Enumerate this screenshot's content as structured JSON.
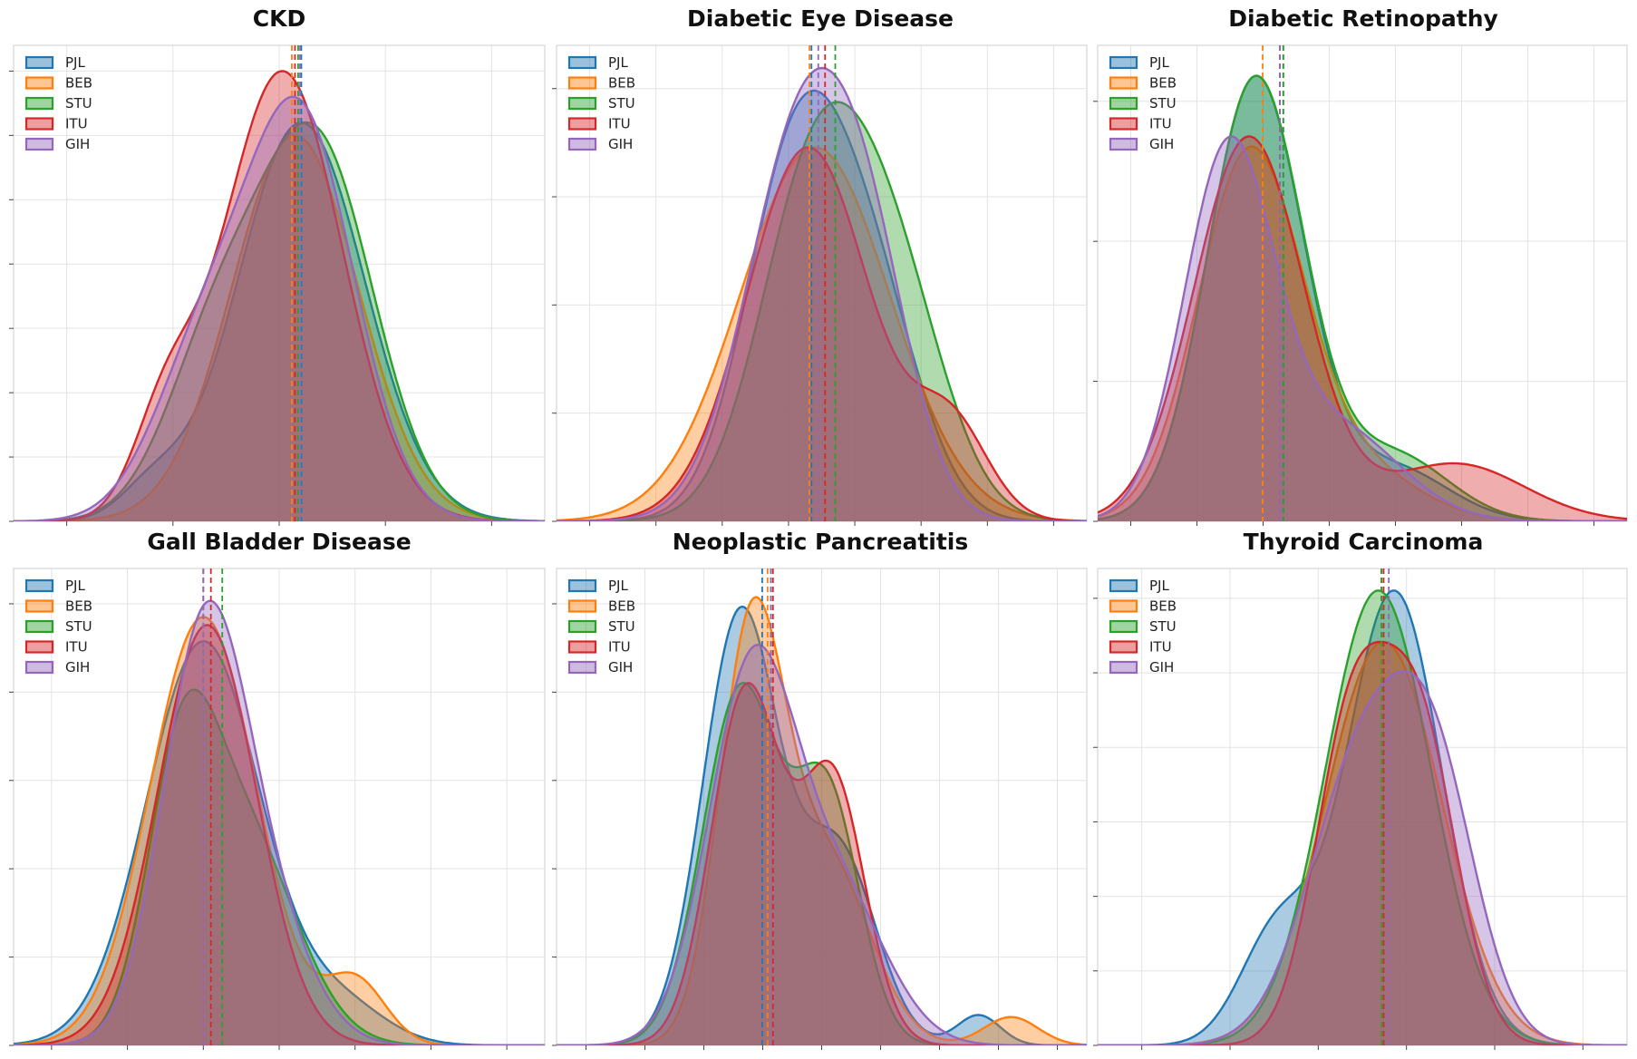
{
  "colors": {
    "PJL": "#1f77b4",
    "BEB": "#ff7f0e",
    "STU": "#2ca02c",
    "ITU": "#d62728",
    "GIH": "#9467bd"
  },
  "legend_labels": [
    "PJL",
    "BEB",
    "STU",
    "ITU",
    "GIH"
  ],
  "chart_data": [
    {
      "type": "area",
      "title": "CKD",
      "xlabel": "",
      "ylabel": "",
      "xlim": [
        -4.2,
        4.2
      ],
      "ylim": [
        0,
        0.37
      ],
      "grid": true,
      "legend": "top-left",
      "x_tick_count": 5,
      "y_tick_count": 8,
      "series": [
        {
          "name": "PJL",
          "mean": 0.35,
          "peak": 0.31,
          "components": [
            [
              1.0,
              0.35,
              1.0
            ],
            [
              0.08,
              -2.0,
              0.5
            ]
          ]
        },
        {
          "name": "BEB",
          "mean": 0.2,
          "peak": 0.3,
          "components": [
            [
              1.0,
              0.25,
              1.0
            ]
          ]
        },
        {
          "name": "STU",
          "mean": 0.3,
          "peak": 0.31,
          "components": [
            [
              1.0,
              0.6,
              0.9
            ],
            [
              0.45,
              -1.0,
              0.8
            ]
          ]
        },
        {
          "name": "ITU",
          "mean": 0.25,
          "peak": 0.35,
          "components": [
            [
              1.0,
              0.05,
              0.95
            ],
            [
              0.2,
              -1.8,
              0.5
            ]
          ]
        },
        {
          "name": "GIH",
          "mean": 0.33,
          "peak": 0.33,
          "components": [
            [
              1.0,
              0.35,
              0.85
            ],
            [
              0.4,
              -1.2,
              0.8
            ]
          ]
        }
      ]
    },
    {
      "type": "area",
      "title": "Diabetic Eye Disease",
      "xlabel": "",
      "ylabel": "",
      "xlim": [
        -3.8,
        4.0
      ],
      "ylim": [
        0,
        0.42
      ],
      "grid": true,
      "legend": "top-left",
      "x_tick_count": 8,
      "y_tick_count": 5,
      "series": [
        {
          "name": "PJL",
          "mean": -0.05,
          "peak": 0.38,
          "components": [
            [
              1.0,
              -0.25,
              0.75
            ],
            [
              0.5,
              0.9,
              0.7
            ]
          ]
        },
        {
          "name": "BEB",
          "mean": -0.08,
          "peak": 0.33,
          "components": [
            [
              1.0,
              0.0,
              1.1
            ]
          ]
        },
        {
          "name": "STU",
          "mean": 0.3,
          "peak": 0.37,
          "components": [
            [
              1.0,
              0.0,
              0.8
            ],
            [
              0.6,
              1.2,
              0.75
            ]
          ]
        },
        {
          "name": "ITU",
          "mean": 0.15,
          "peak": 0.33,
          "components": [
            [
              1.0,
              -0.1,
              0.9
            ],
            [
              0.25,
              2.0,
              0.55
            ]
          ]
        },
        {
          "name": "GIH",
          "mean": 0.05,
          "peak": 0.4,
          "components": [
            [
              1.0,
              -0.1,
              0.85
            ],
            [
              0.3,
              0.9,
              0.6
            ]
          ]
        }
      ]
    },
    {
      "type": "area",
      "title": "Diabetic Retinopathy",
      "xlabel": "",
      "ylabel": "",
      "xlim": [
        -2.7,
        5.0
      ],
      "ylim": [
        0,
        0.47
      ],
      "grid": true,
      "legend": "top-left",
      "x_tick_count": 8,
      "y_tick_count": 4,
      "series": [
        {
          "name": "PJL",
          "mean": 0.0,
          "peak": 0.44,
          "components": [
            [
              1.0,
              -0.4,
              0.7
            ],
            [
              0.12,
              1.6,
              0.8
            ]
          ]
        },
        {
          "name": "BEB",
          "mean": -0.3,
          "peak": 0.37,
          "components": [
            [
              1.0,
              -0.5,
              0.75
            ],
            [
              0.15,
              1.0,
              0.9
            ]
          ]
        },
        {
          "name": "STU",
          "mean": 0.0,
          "peak": 0.44,
          "components": [
            [
              1.0,
              -0.4,
              0.7
            ],
            [
              0.15,
              1.6,
              0.8
            ]
          ]
        },
        {
          "name": "ITU",
          "mean": -0.05,
          "peak": 0.38,
          "components": [
            [
              1.0,
              -0.5,
              0.8
            ],
            [
              0.15,
              2.5,
              1.0
            ]
          ]
        },
        {
          "name": "GIH",
          "mean": -0.05,
          "peak": 0.38,
          "components": [
            [
              1.0,
              -0.8,
              0.65
            ],
            [
              0.25,
              0.8,
              0.9
            ]
          ]
        }
      ]
    },
    {
      "type": "area",
      "title": "Gall Bladder Disease",
      "xlabel": "",
      "ylabel": "",
      "xlim": [
        -2.5,
        4.5
      ],
      "ylim": [
        0,
        0.59
      ],
      "grid": true,
      "legend": "top-left",
      "x_tick_count": 7,
      "y_tick_count": 6,
      "series": [
        {
          "name": "PJL",
          "mean": 0.0,
          "peak": 0.5,
          "components": [
            [
              1.0,
              0.0,
              0.75
            ],
            [
              0.1,
              1.8,
              0.6
            ]
          ]
        },
        {
          "name": "BEB",
          "mean": 0.0,
          "peak": 0.53,
          "components": [
            [
              1.0,
              0.0,
              0.7
            ],
            [
              0.15,
              2.0,
              0.4
            ]
          ]
        },
        {
          "name": "STU",
          "mean": 0.25,
          "peak": 0.44,
          "components": [
            [
              1.0,
              -0.3,
              0.45
            ],
            [
              0.95,
              0.5,
              0.7
            ]
          ]
        },
        {
          "name": "ITU",
          "mean": 0.1,
          "peak": 0.52,
          "components": [
            [
              1.0,
              0.05,
              0.65
            ]
          ]
        },
        {
          "name": "GIH",
          "mean": 0.0,
          "peak": 0.55,
          "components": [
            [
              1.0,
              0.0,
              0.55
            ],
            [
              0.3,
              0.8,
              0.6
            ]
          ]
        }
      ]
    },
    {
      "type": "area",
      "title": "Neoplastic Pancreatitis",
      "xlabel": "",
      "ylabel": "",
      "xlim": [
        -1.9,
        3.0
      ],
      "ylim": [
        0,
        0.5
      ],
      "grid": true,
      "legend": "top-left",
      "x_tick_count": 9,
      "y_tick_count": 6,
      "series": [
        {
          "name": "PJL",
          "mean": 0.0,
          "peak": 0.46,
          "components": [
            [
              1.0,
              -0.2,
              0.35
            ],
            [
              0.45,
              0.7,
              0.35
            ],
            [
              0.07,
              2.0,
              0.2
            ]
          ]
        },
        {
          "name": "BEB",
          "mean": 0.05,
          "peak": 0.47,
          "components": [
            [
              1.0,
              -0.1,
              0.3
            ],
            [
              0.45,
              0.6,
              0.4
            ],
            [
              0.07,
              2.3,
              0.25
            ]
          ]
        },
        {
          "name": "STU",
          "mean": 0.08,
          "peak": 0.38,
          "components": [
            [
              1.0,
              -0.2,
              0.35
            ],
            [
              0.7,
              0.6,
              0.3
            ]
          ]
        },
        {
          "name": "ITU",
          "mean": 0.1,
          "peak": 0.38,
          "components": [
            [
              1.0,
              -0.15,
              0.32
            ],
            [
              0.75,
              0.65,
              0.3
            ]
          ]
        },
        {
          "name": "GIH",
          "mean": 0.08,
          "peak": 0.42,
          "components": [
            [
              1.0,
              -0.1,
              0.4
            ],
            [
              0.4,
              0.7,
              0.45
            ]
          ]
        }
      ]
    },
    {
      "type": "area",
      "title": "Thyroid Carcinoma",
      "xlabel": "",
      "ylabel": "",
      "xlim": [
        -2.7,
        2.3
      ],
      "ylim": [
        0,
        0.65
      ],
      "grid": true,
      "legend": "top-left",
      "x_tick_count": 6,
      "y_tick_count": 7,
      "series": [
        {
          "name": "PJL",
          "mean": 0.0,
          "peak": 0.62,
          "components": [
            [
              1.0,
              0.1,
              0.45
            ],
            [
              0.25,
              -1.0,
              0.35
            ]
          ]
        },
        {
          "name": "BEB",
          "mean": -0.02,
          "peak": 0.55,
          "components": [
            [
              1.0,
              0.0,
              0.55
            ]
          ]
        },
        {
          "name": "STU",
          "mean": -0.02,
          "peak": 0.62,
          "components": [
            [
              1.0,
              -0.05,
              0.5
            ]
          ]
        },
        {
          "name": "ITU",
          "mean": 0.0,
          "peak": 0.55,
          "components": [
            [
              1.0,
              -0.3,
              0.35
            ],
            [
              0.95,
              0.35,
              0.35
            ]
          ]
        },
        {
          "name": "GIH",
          "mean": 0.05,
          "peak": 0.51,
          "components": [
            [
              1.0,
              -0.2,
              0.5
            ],
            [
              0.8,
              0.5,
              0.4
            ]
          ]
        }
      ]
    }
  ]
}
